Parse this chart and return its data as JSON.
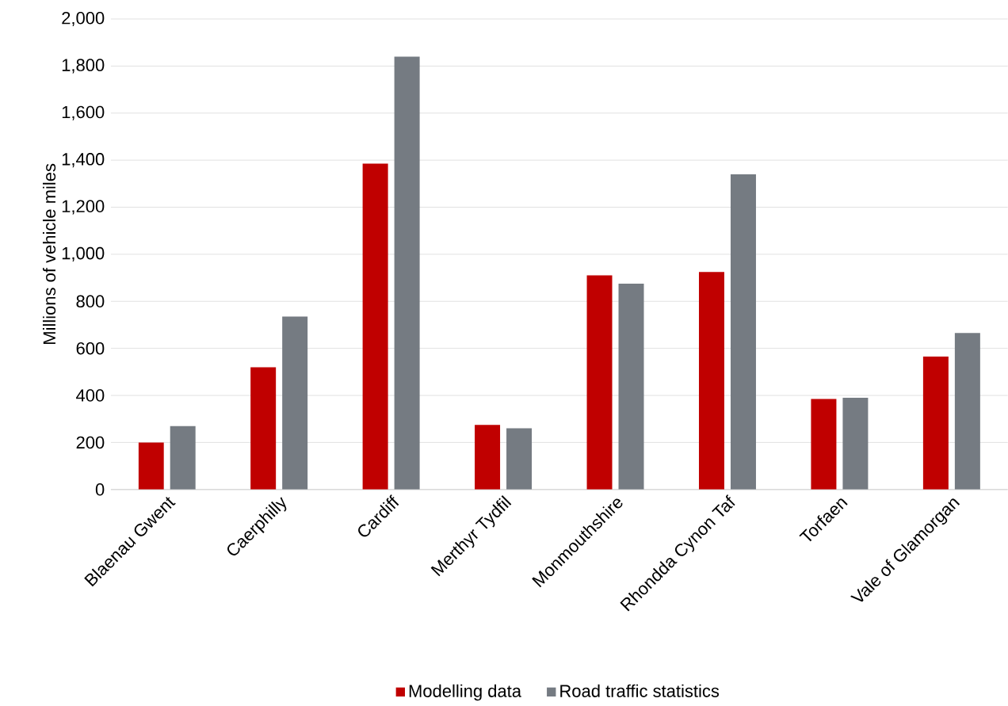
{
  "chart_data": {
    "type": "bar",
    "ylabel": "Millions of vehicle miles",
    "categories": [
      "Blaenau Gwent",
      "Caerphilly",
      "Cardiff",
      "Merthyr Tydfil",
      "Monmouthshire",
      "Rhondda Cynon Taf",
      "Torfaen",
      "Vale of Glamorgan"
    ],
    "series": [
      {
        "name": "Modelling data",
        "color": "#c00000",
        "values": [
          200,
          520,
          1385,
          275,
          910,
          925,
          385,
          565
        ]
      },
      {
        "name": "Road traffic statistics",
        "color": "#757b82",
        "values": [
          270,
          735,
          1840,
          260,
          875,
          1340,
          390,
          665
        ]
      }
    ],
    "ylim": [
      0,
      2000
    ],
    "yticks": [
      0,
      200,
      400,
      600,
      800,
      {
        "value": 1000,
        "label": "1,000"
      },
      {
        "value": 1200,
        "label": "1,200"
      },
      {
        "value": 1400,
        "label": "1,400"
      },
      {
        "value": 1600,
        "label": "1,600"
      },
      {
        "value": 1800,
        "label": "1,800"
      },
      {
        "value": 2000,
        "label": "2,000"
      }
    ],
    "grid": "y",
    "legend": "bottom"
  }
}
